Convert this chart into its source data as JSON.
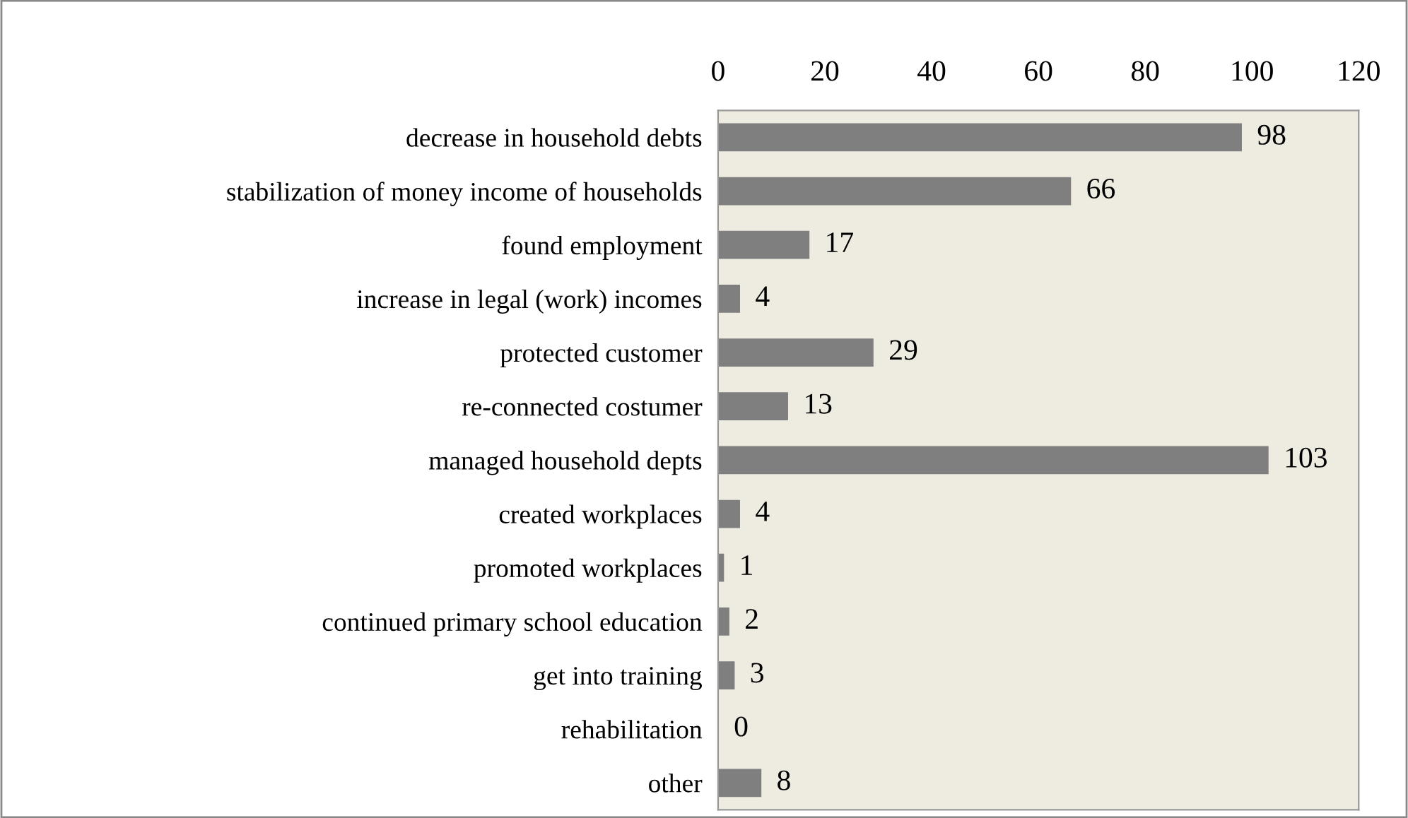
{
  "chart_data": {
    "type": "bar",
    "orientation": "horizontal",
    "categories": [
      "decrease in household debts",
      "stabilization of money income of households",
      "found employment",
      "increase in legal (work) incomes",
      "protected customer",
      "re-connected costumer",
      "managed household depts",
      "created workplaces",
      "promoted workplaces",
      "continued primary school education",
      "get into training",
      "rehabilitation",
      "other"
    ],
    "values": [
      98,
      66,
      17,
      4,
      29,
      13,
      103,
      4,
      1,
      2,
      3,
      0,
      8
    ],
    "color": "#7f7f7f",
    "xlim": [
      0,
      120
    ],
    "xticks": [
      0,
      20,
      40,
      60,
      80,
      100,
      120
    ],
    "data_labels": true,
    "grid": false,
    "legend": false
  }
}
